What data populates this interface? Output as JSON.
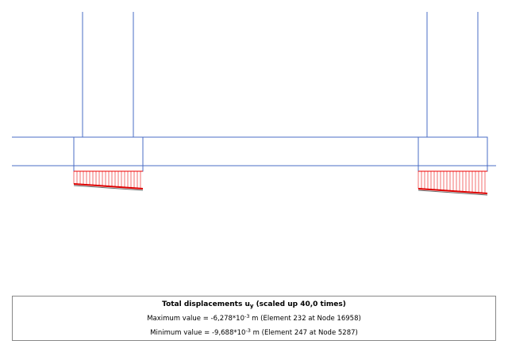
{
  "legend": {
    "title": {
      "text": "Total displacements u",
      "subscript": "y",
      "suffix": " (scaled up 40,0 times)"
    },
    "maximum": {
      "text": "Maximum value = -6,278*10",
      "superscript": "-3",
      "suffix": " m (Element 232 at Node 16958)"
    },
    "minimum": {
      "text": "Minimum value = -9,688*10",
      "superscript": "-3",
      "suffix": " m (Element 247 at Node 5287)"
    }
  }
}
